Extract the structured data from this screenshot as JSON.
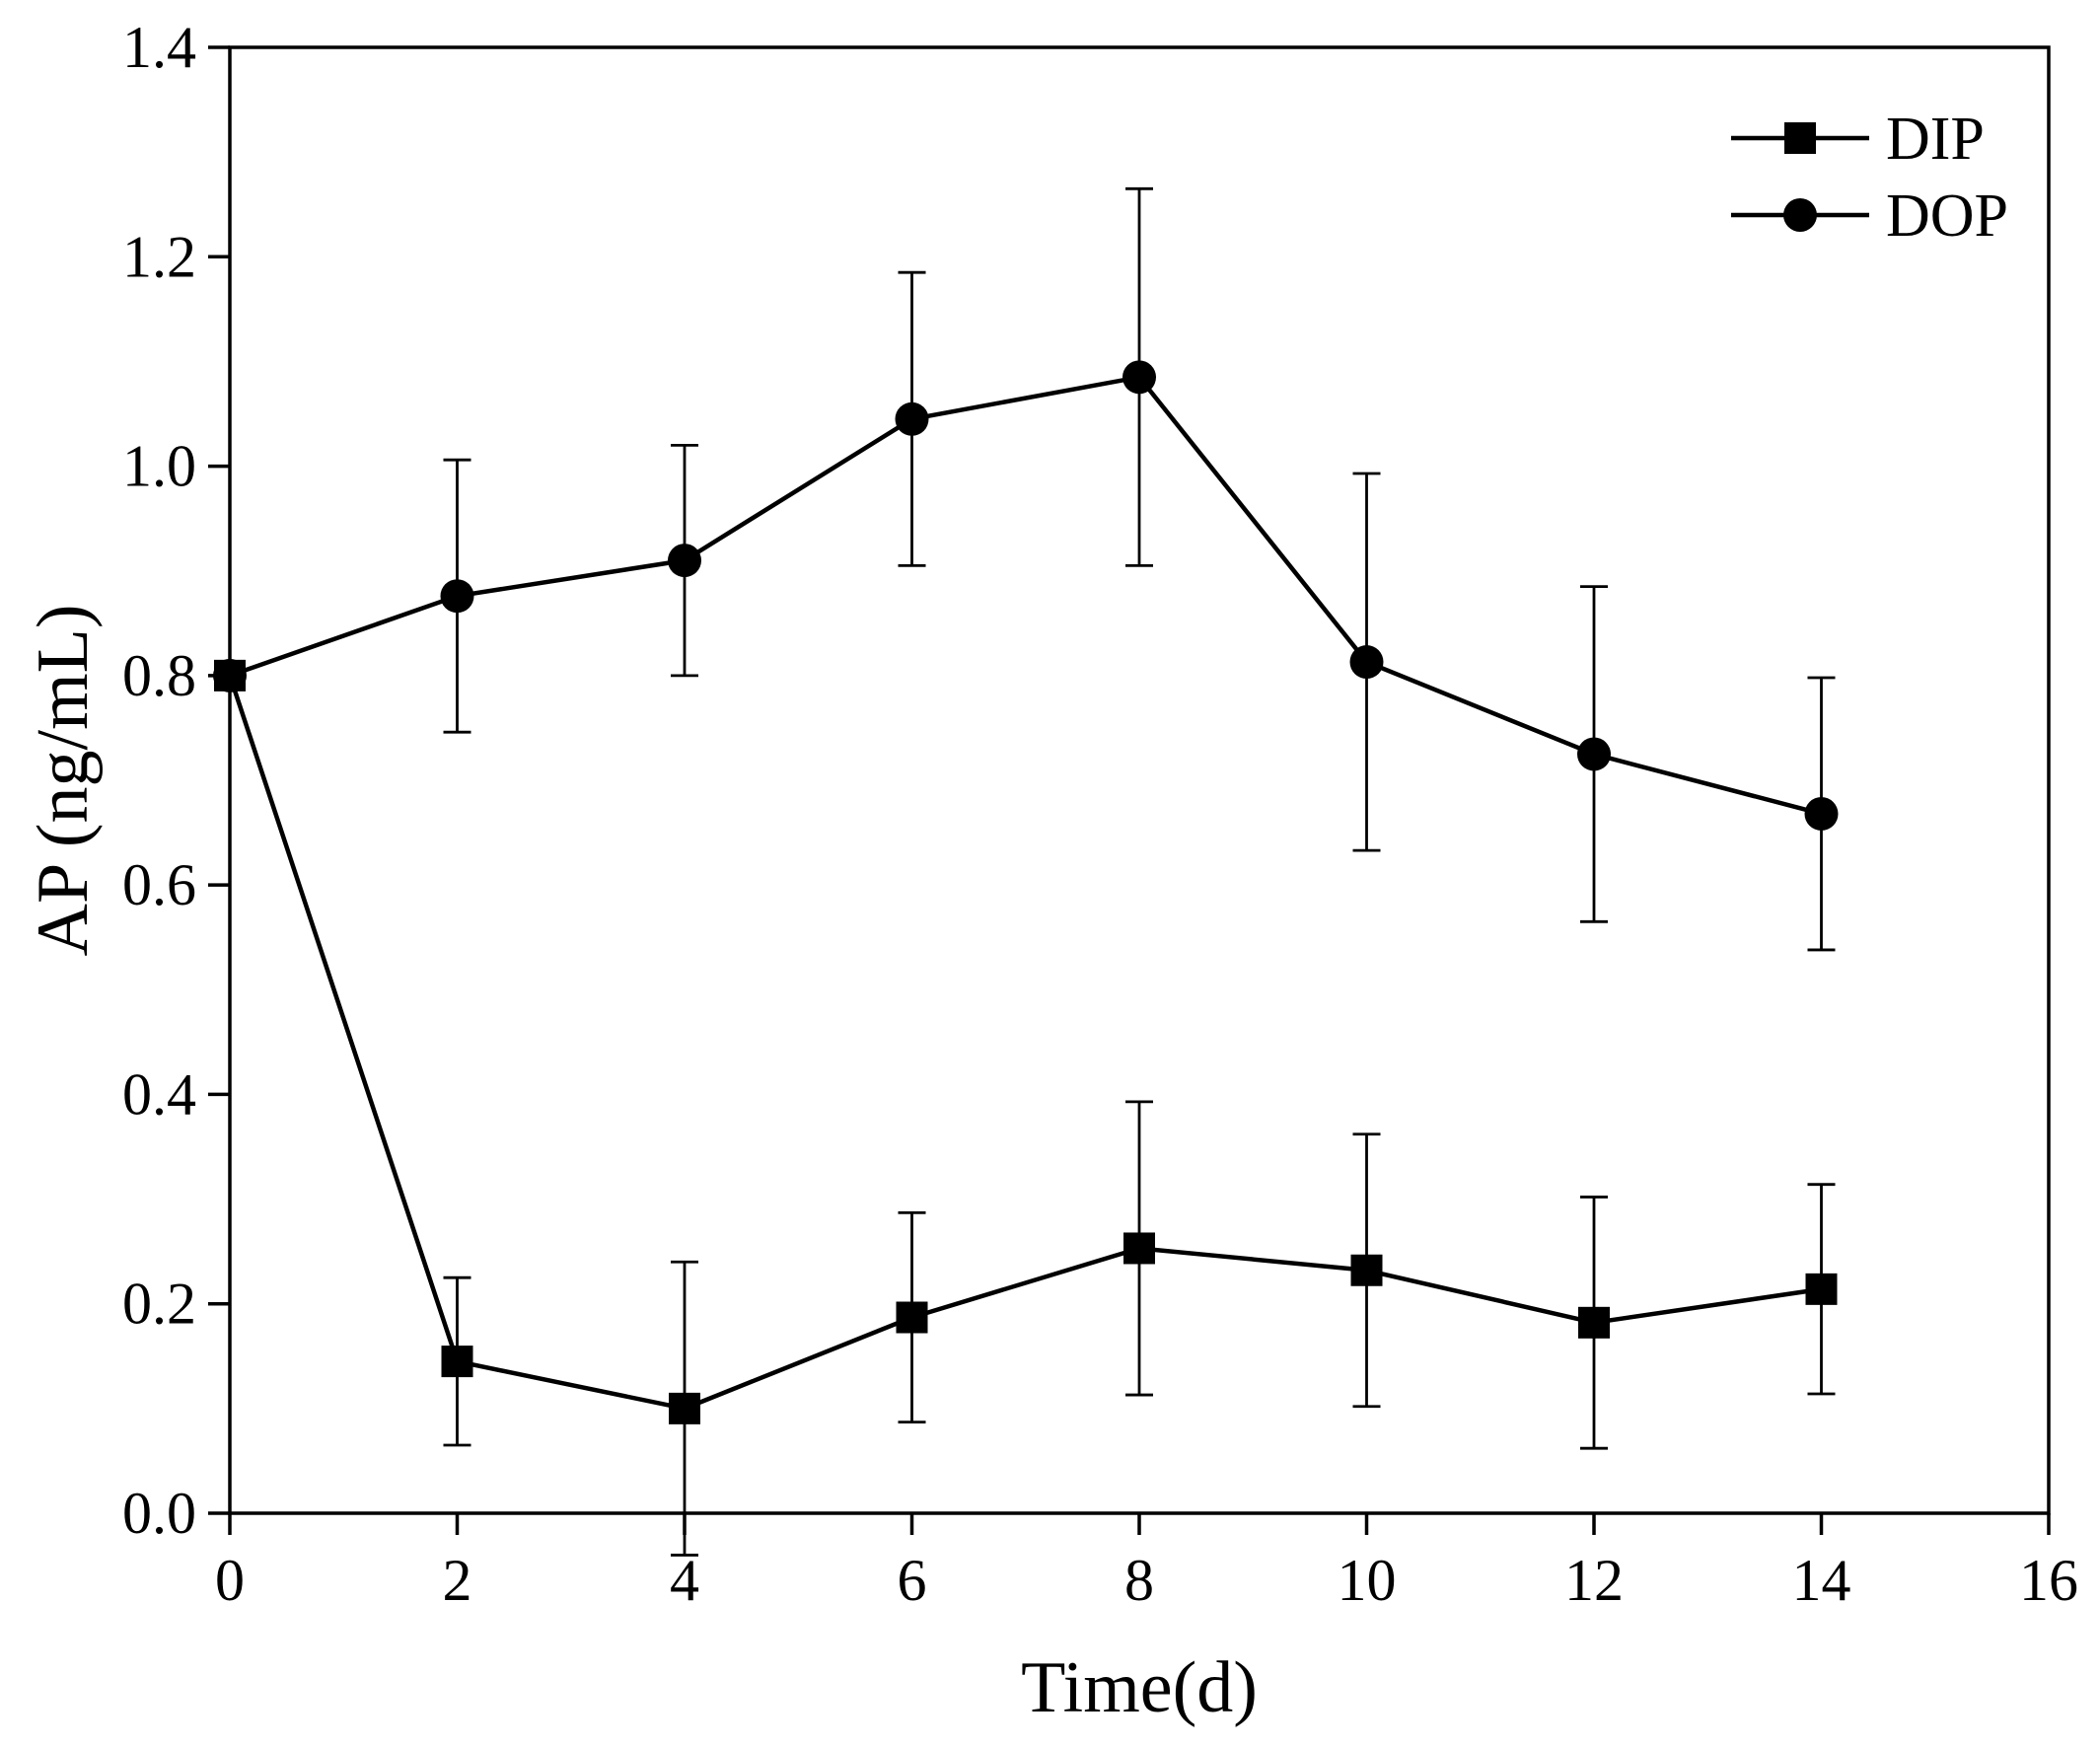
{
  "chart_data": {
    "type": "line",
    "title": "",
    "xlabel": "Time(d)",
    "ylabel": "AP (ng/mL)",
    "xlim": [
      0,
      16
    ],
    "ylim": [
      0,
      1.4
    ],
    "xticks": [
      0,
      2,
      4,
      6,
      8,
      10,
      12,
      14,
      16
    ],
    "xtick_labels": [
      "0",
      "2",
      "4",
      "6",
      "8",
      "10",
      "12",
      "14",
      "16"
    ],
    "yticks": [
      0,
      0.2,
      0.4,
      0.6,
      0.8,
      1.0,
      1.2,
      1.4
    ],
    "ytick_labels": [
      "0.0",
      "0.2",
      "0.4",
      "0.6",
      "0.8",
      "1.0",
      "1.2",
      "1.4"
    ],
    "grid": false,
    "legend_position": "top-right",
    "x": [
      0,
      2,
      4,
      6,
      8,
      10,
      12,
      14
    ],
    "series": [
      {
        "name": "DIP",
        "marker": "square",
        "values": [
          0.8,
          0.145,
          0.1,
          0.187,
          0.253,
          0.232,
          0.182,
          0.214
        ],
        "errors": [
          0.0,
          0.08,
          0.14,
          0.1,
          0.14,
          0.13,
          0.12,
          0.1
        ]
      },
      {
        "name": "DOP",
        "marker": "circle",
        "values": [
          0.8,
          0.876,
          0.91,
          1.045,
          1.085,
          0.813,
          0.725,
          0.668
        ],
        "errors": [
          0.0,
          0.13,
          0.11,
          0.14,
          0.18,
          0.18,
          0.16,
          0.13
        ]
      }
    ]
  }
}
